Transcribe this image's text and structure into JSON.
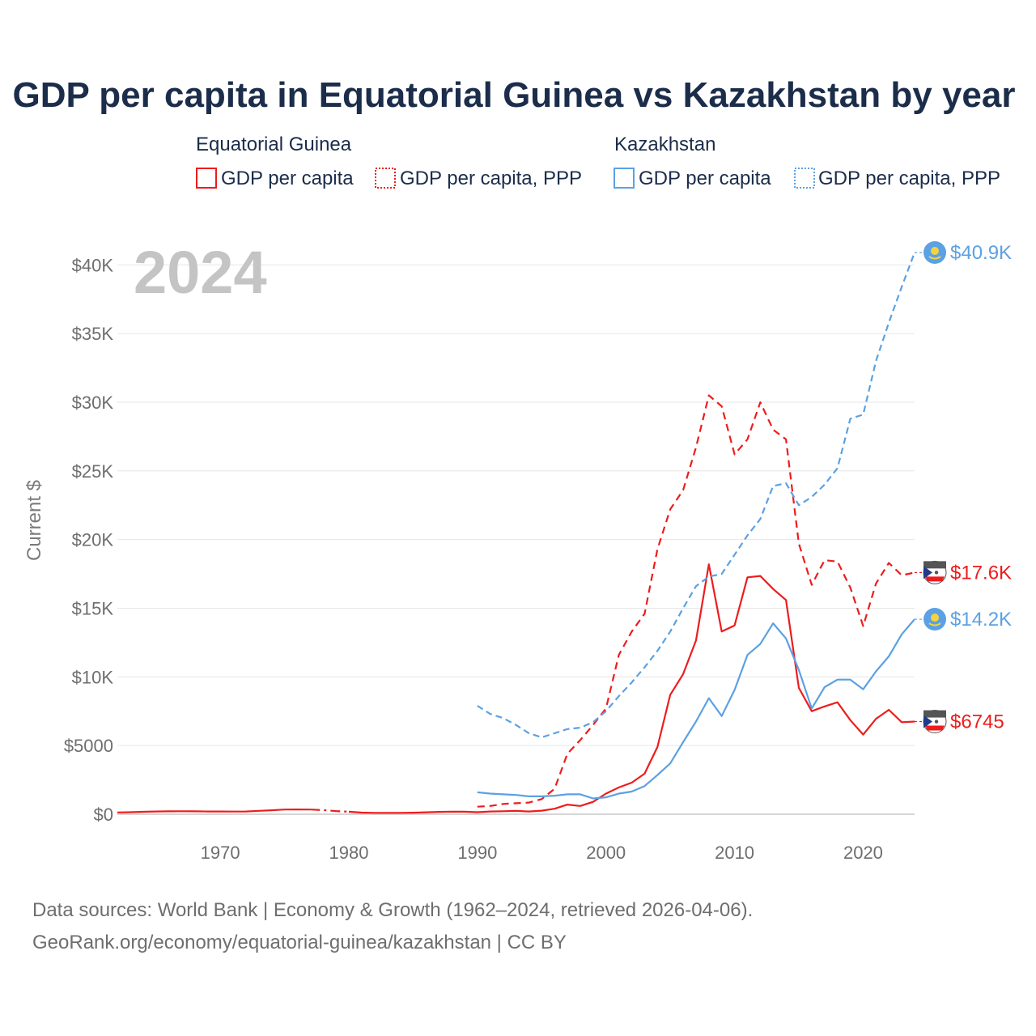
{
  "title": "GDP per capita in Equatorial Guinea vs Kazakhstan by year",
  "colors": {
    "equatorial_guinea": "#ee1c1c",
    "kazakhstan": "#5ba1e3"
  },
  "legend": {
    "groups": [
      {
        "country": "Equatorial Guinea",
        "items": [
          "GDP per capita",
          "GDP per capita, PPP"
        ]
      },
      {
        "country": "Kazakhstan",
        "items": [
          "GDP per capita",
          "GDP per capita, PPP"
        ]
      }
    ]
  },
  "year_label": "2024",
  "footer": {
    "line1": "Data sources: World Bank | Economy & Growth (1962–2024, retrieved 2026-04-06).",
    "line2": "GeoRank.org/economy/equatorial-guinea/kazakhstan | CC BY"
  },
  "chart_data": {
    "type": "line",
    "title": "GDP per capita in Equatorial Guinea vs Kazakhstan by year",
    "xlabel": "",
    "ylabel": "Current $",
    "xlim": [
      1962,
      2024
    ],
    "ylim": [
      0,
      40900
    ],
    "x_ticks": [
      1970,
      1980,
      1990,
      2000,
      2010,
      2020
    ],
    "x_tick_labels": [
      "1970",
      "1980",
      "1990",
      "2000",
      "2010",
      "2020"
    ],
    "y_ticks": [
      0,
      5000,
      10000,
      15000,
      20000,
      25000,
      30000,
      35000,
      40000
    ],
    "y_tick_labels": [
      "$0",
      "$5000",
      "$10K",
      "$15K",
      "$20K",
      "$25K",
      "$30K",
      "$35K",
      "$40K"
    ],
    "grid": true,
    "series": [
      {
        "name": "Equatorial Guinea — GDP per capita",
        "country": "Equatorial Guinea",
        "style": "solid",
        "color": "#ee1c1c",
        "end_label": "$6745",
        "points": [
          [
            1962,
            130
          ],
          [
            1963,
            150
          ],
          [
            1964,
            175
          ],
          [
            1965,
            200
          ],
          [
            1966,
            210
          ],
          [
            1967,
            220
          ],
          [
            1968,
            210
          ],
          [
            1969,
            200
          ],
          [
            1970,
            200
          ],
          [
            1971,
            195
          ],
          [
            1972,
            200
          ],
          [
            1973,
            250
          ],
          [
            1974,
            290
          ],
          [
            1975,
            340
          ],
          [
            1976,
            345
          ],
          [
            1977,
            340
          ]
        ],
        "points_gap": [
          [
            1977,
            340
          ],
          [
            1978,
            300
          ],
          [
            1979,
            230
          ],
          [
            1980,
            180
          ]
        ],
        "points_late": [
          [
            1980,
            180
          ],
          [
            1981,
            120
          ],
          [
            1982,
            100
          ],
          [
            1983,
            100
          ],
          [
            1984,
            100
          ],
          [
            1985,
            110
          ],
          [
            1986,
            140
          ],
          [
            1987,
            170
          ],
          [
            1988,
            190
          ],
          [
            1989,
            180
          ],
          [
            1990,
            150
          ],
          [
            1991,
            200
          ],
          [
            1992,
            220
          ],
          [
            1993,
            250
          ],
          [
            1994,
            200
          ],
          [
            1995,
            260
          ],
          [
            1996,
            400
          ],
          [
            1997,
            700
          ],
          [
            1998,
            600
          ],
          [
            1999,
            900
          ],
          [
            2000,
            1500
          ],
          [
            2001,
            1950
          ],
          [
            2002,
            2300
          ],
          [
            2003,
            2950
          ],
          [
            2004,
            4900
          ],
          [
            2005,
            8700
          ],
          [
            2006,
            10200
          ],
          [
            2007,
            12650
          ],
          [
            2008,
            18200
          ],
          [
            2009,
            13300
          ],
          [
            2010,
            13750
          ],
          [
            2011,
            17250
          ],
          [
            2012,
            17350
          ],
          [
            2013,
            16400
          ],
          [
            2014,
            15600
          ],
          [
            2015,
            9200
          ],
          [
            2016,
            7500
          ],
          [
            2017,
            7850
          ],
          [
            2018,
            8150
          ],
          [
            2019,
            6850
          ],
          [
            2020,
            5800
          ],
          [
            2021,
            6950
          ],
          [
            2022,
            7600
          ],
          [
            2023,
            6700
          ],
          [
            2024,
            6745
          ]
        ]
      },
      {
        "name": "Equatorial Guinea — GDP per capita, PPP",
        "country": "Equatorial Guinea",
        "style": "dashed",
        "color": "#ee1c1c",
        "end_label": "$17.6K",
        "points": [
          [
            1990,
            550
          ],
          [
            1991,
            600
          ],
          [
            1992,
            750
          ],
          [
            1993,
            800
          ],
          [
            1994,
            850
          ],
          [
            1995,
            1100
          ],
          [
            1996,
            1850
          ],
          [
            1997,
            4400
          ],
          [
            1998,
            5400
          ],
          [
            1999,
            6500
          ],
          [
            2000,
            7700
          ],
          [
            2001,
            11600
          ],
          [
            2002,
            13300
          ],
          [
            2003,
            14600
          ],
          [
            2004,
            19300
          ],
          [
            2005,
            22200
          ],
          [
            2006,
            23600
          ],
          [
            2007,
            26700
          ],
          [
            2008,
            30500
          ],
          [
            2009,
            29700
          ],
          [
            2010,
            26200
          ],
          [
            2011,
            27300
          ],
          [
            2012,
            30000
          ],
          [
            2013,
            28000
          ],
          [
            2014,
            27300
          ],
          [
            2015,
            19700
          ],
          [
            2016,
            16700
          ],
          [
            2017,
            18500
          ],
          [
            2018,
            18400
          ],
          [
            2019,
            16500
          ],
          [
            2020,
            13700
          ],
          [
            2021,
            16800
          ],
          [
            2022,
            18300
          ],
          [
            2023,
            17400
          ],
          [
            2024,
            17600
          ]
        ]
      },
      {
        "name": "Kazakhstan — GDP per capita",
        "country": "Kazakhstan",
        "style": "solid",
        "color": "#5ba1e3",
        "end_label": "$14.2K",
        "points": [
          [
            1990,
            1600
          ],
          [
            1991,
            1500
          ],
          [
            1992,
            1450
          ],
          [
            1993,
            1400
          ],
          [
            1994,
            1300
          ],
          [
            1995,
            1300
          ],
          [
            1996,
            1350
          ],
          [
            1997,
            1450
          ],
          [
            1998,
            1450
          ],
          [
            1999,
            1150
          ],
          [
            2000,
            1230
          ],
          [
            2001,
            1500
          ],
          [
            2002,
            1650
          ],
          [
            2003,
            2050
          ],
          [
            2004,
            2850
          ],
          [
            2005,
            3700
          ],
          [
            2006,
            5250
          ],
          [
            2007,
            6750
          ],
          [
            2008,
            8450
          ],
          [
            2009,
            7150
          ],
          [
            2010,
            9050
          ],
          [
            2011,
            11600
          ],
          [
            2012,
            12400
          ],
          [
            2013,
            13900
          ],
          [
            2014,
            12800
          ],
          [
            2015,
            10500
          ],
          [
            2016,
            7700
          ],
          [
            2017,
            9250
          ],
          [
            2018,
            9800
          ],
          [
            2019,
            9800
          ],
          [
            2020,
            9100
          ],
          [
            2021,
            10400
          ],
          [
            2022,
            11500
          ],
          [
            2023,
            13100
          ],
          [
            2024,
            14200
          ]
        ]
      },
      {
        "name": "Kazakhstan — GDP per capita, PPP",
        "country": "Kazakhstan",
        "style": "dotted",
        "color": "#5ba1e3",
        "end_label": "$40.9K",
        "points": [
          [
            1990,
            7900
          ],
          [
            1991,
            7300
          ],
          [
            1992,
            7000
          ],
          [
            1993,
            6500
          ],
          [
            1994,
            5900
          ],
          [
            1995,
            5600
          ],
          [
            1996,
            5900
          ],
          [
            1997,
            6200
          ],
          [
            1998,
            6300
          ],
          [
            1999,
            6700
          ],
          [
            2000,
            7500
          ],
          [
            2001,
            8600
          ],
          [
            2002,
            9600
          ],
          [
            2003,
            10700
          ],
          [
            2004,
            11900
          ],
          [
            2005,
            13300
          ],
          [
            2006,
            15000
          ],
          [
            2007,
            16600
          ],
          [
            2008,
            17300
          ],
          [
            2009,
            17500
          ],
          [
            2010,
            18900
          ],
          [
            2011,
            20300
          ],
          [
            2012,
            21500
          ],
          [
            2013,
            23900
          ],
          [
            2014,
            24100
          ],
          [
            2015,
            22500
          ],
          [
            2016,
            23100
          ],
          [
            2017,
            24000
          ],
          [
            2018,
            25200
          ],
          [
            2019,
            28800
          ],
          [
            2020,
            29100
          ],
          [
            2021,
            33000
          ],
          [
            2022,
            35800
          ],
          [
            2023,
            38400
          ],
          [
            2024,
            40900
          ]
        ]
      }
    ]
  }
}
